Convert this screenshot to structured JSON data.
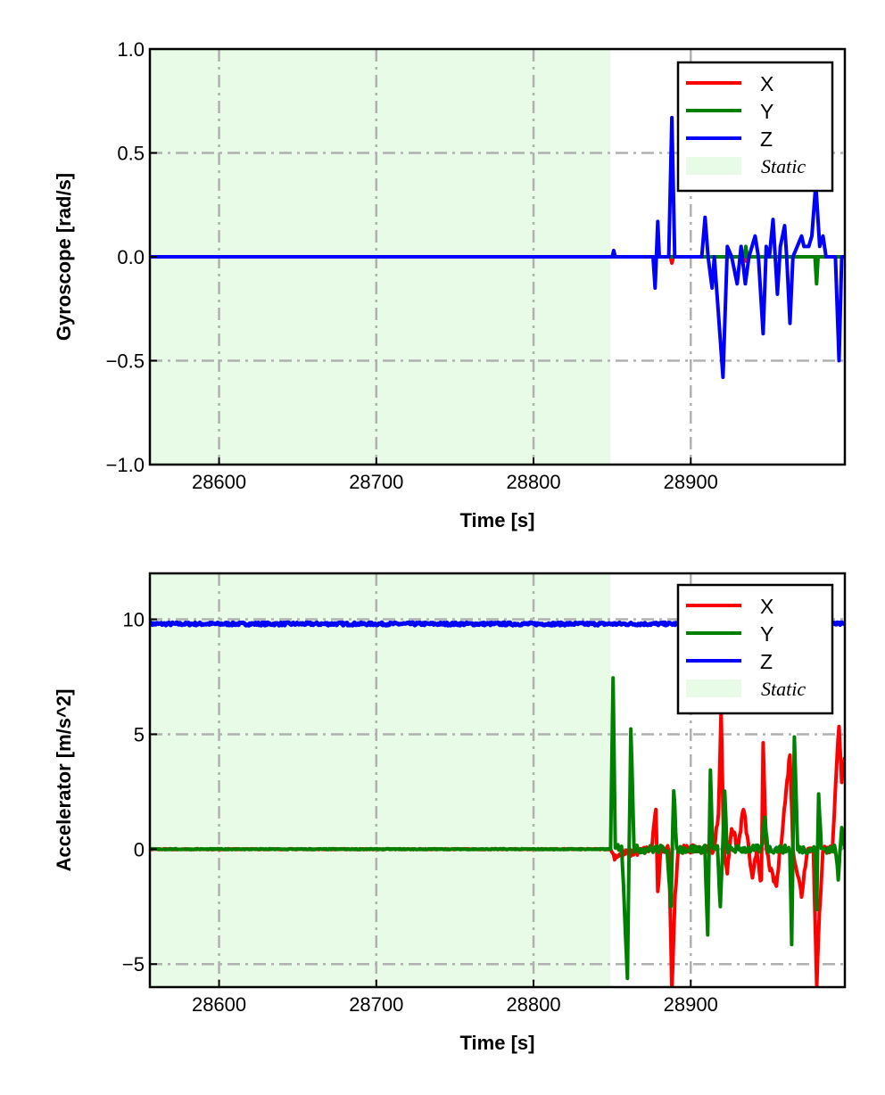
{
  "chart_data": [
    {
      "type": "line",
      "title": "",
      "xlabel": "Time [s]",
      "ylabel": "Gyroscope [rad/s]",
      "xlim": [
        28556,
        28998
      ],
      "ylim": [
        -1.0,
        1.0
      ],
      "xticks": [
        28600,
        28700,
        28800,
        28900
      ],
      "xtick_labels": [
        "28600",
        "28700",
        "28800",
        "28900"
      ],
      "yticks": [
        -1.0,
        -0.5,
        0.0,
        0.5,
        1.0
      ],
      "ytick_labels": [
        "−1.0",
        "−0.5",
        "0.0",
        "0.5",
        "1.0"
      ],
      "grid": true,
      "legend_position": "top-right",
      "static_span": {
        "label": "Static",
        "start": 28556,
        "end": 28849,
        "color": "#e8fbe6"
      },
      "series": [
        {
          "name": "X",
          "color": "#ff0000",
          "points": [
            [
              28556,
              0
            ],
            [
              28887,
              0
            ],
            [
              28888,
              -0.03
            ],
            [
              28889,
              0
            ],
            [
              28934,
              0
            ],
            [
              28935,
              -0.02
            ],
            [
              28936,
              0
            ],
            [
              28998,
              0
            ]
          ]
        },
        {
          "name": "Y",
          "color": "#008000",
          "points": [
            [
              28556,
              0
            ],
            [
              28934,
              0
            ],
            [
              28935,
              0.05
            ],
            [
              28936,
              0
            ],
            [
              28979,
              0
            ],
            [
              28980,
              -0.13
            ],
            [
              28981,
              0
            ],
            [
              28998,
              0
            ]
          ]
        },
        {
          "name": "Z",
          "color": "#0000ff",
          "points": [
            [
              28556,
              0
            ],
            [
              28850,
              0
            ],
            [
              28851,
              0.03
            ],
            [
              28852,
              0
            ],
            [
              28876,
              0
            ],
            [
              28877.3,
              -0.15
            ],
            [
              28879,
              0.17
            ],
            [
              28880,
              0
            ],
            [
              28886,
              0
            ],
            [
              28888,
              0.67
            ],
            [
              28889.8,
              0
            ],
            [
              28907,
              0
            ],
            [
              28909.1,
              0.19
            ],
            [
              28911,
              0
            ],
            [
              28913.6,
              -0.15
            ],
            [
              28915,
              0
            ],
            [
              28920.5,
              -0.58
            ],
            [
              28923.3,
              0.05
            ],
            [
              28926,
              0
            ],
            [
              28929.5,
              -0.13
            ],
            [
              28932,
              0.05
            ],
            [
              28934.7,
              -0.13
            ],
            [
              28937,
              0
            ],
            [
              28940.9,
              0.1
            ],
            [
              28943,
              0
            ],
            [
              28946,
              -0.37
            ],
            [
              28948,
              0.05
            ],
            [
              28950,
              0
            ],
            [
              28952.3,
              0.18
            ],
            [
              28955.1,
              -0.18
            ],
            [
              28957,
              0.05
            ],
            [
              28959.7,
              0.15
            ],
            [
              28961,
              0
            ],
            [
              28963.1,
              -0.32
            ],
            [
              28965,
              0
            ],
            [
              28970.5,
              0.1
            ],
            [
              28972,
              0.05
            ],
            [
              28975,
              0.05
            ],
            [
              28977,
              0.1
            ],
            [
              28979.5,
              0.35
            ],
            [
              28982,
              0.05
            ],
            [
              28984.1,
              0.1
            ],
            [
              28986,
              0
            ],
            [
              28992,
              0
            ],
            [
              28994.3,
              -0.5
            ],
            [
              28996,
              0
            ],
            [
              28998,
              0
            ]
          ]
        }
      ]
    },
    {
      "type": "line",
      "title": "",
      "xlabel": "Time [s]",
      "ylabel": "Accelerator [m/s^2]",
      "xlim": [
        28556,
        28998
      ],
      "ylim": [
        -6,
        12
      ],
      "xticks": [
        28600,
        28700,
        28800,
        28900
      ],
      "xtick_labels": [
        "28600",
        "28700",
        "28800",
        "28900"
      ],
      "yticks": [
        -5,
        0,
        5,
        10
      ],
      "ytick_labels": [
        "−5",
        "0",
        "5",
        "10"
      ],
      "grid": true,
      "legend_position": "top-right",
      "static_span": {
        "label": "Static",
        "start": 28556,
        "end": 28849,
        "color": "#e8fbe6"
      },
      "series": [
        {
          "name": "Z",
          "color": "#0000ff",
          "legend_order": 2,
          "points": [
            [
              28556,
              9.8
            ],
            [
              28998,
              9.8
            ]
          ]
        },
        {
          "name": "X",
          "color": "#ff0000",
          "legend_order": 0,
          "points": [
            [
              28556,
              0
            ],
            [
              28849,
              0
            ],
            [
              28851,
              -0.3
            ],
            [
              28875,
              0
            ],
            [
              28877.8,
              1.8
            ],
            [
              28879,
              -2
            ],
            [
              28881,
              0
            ],
            [
              28886,
              0
            ],
            [
              28888,
              -6
            ],
            [
              28890,
              -2
            ],
            [
              28892,
              0
            ],
            [
              28915,
              0
            ],
            [
              28917.6,
              1.6
            ],
            [
              28919.3,
              6
            ],
            [
              28921,
              0
            ],
            [
              28923.2,
              -1
            ],
            [
              28926,
              1
            ],
            [
              28930,
              0
            ],
            [
              28933.5,
              1.8
            ],
            [
              28936,
              0.5
            ],
            [
              28939.2,
              -1.4
            ],
            [
              28942,
              0
            ],
            [
              28944.9,
              -1.5
            ],
            [
              28946,
              4.5
            ],
            [
              28948,
              0
            ],
            [
              28951,
              -1
            ],
            [
              28954.5,
              -1.6
            ],
            [
              28957,
              0
            ],
            [
              28963.1,
              4.2
            ],
            [
              28965,
              0
            ],
            [
              28970.5,
              -2
            ],
            [
              28974,
              0
            ],
            [
              28978,
              0
            ],
            [
              28980.1,
              -6
            ],
            [
              28981.8,
              -2.9
            ],
            [
              28984,
              0
            ],
            [
              28990,
              0
            ],
            [
              28994.3,
              5.5
            ],
            [
              28996,
              3
            ],
            [
              28998,
              4
            ]
          ]
        },
        {
          "name": "Y",
          "color": "#008000",
          "legend_order": 1,
          "points": [
            [
              28556,
              0
            ],
            [
              28849,
              0
            ],
            [
              28850.6,
              7.4
            ],
            [
              28852,
              0
            ],
            [
              28856,
              0.2
            ],
            [
              28859.7,
              -5.5
            ],
            [
              28861.9,
              5.4
            ],
            [
              28864,
              0
            ],
            [
              28885,
              0
            ],
            [
              28887.5,
              -2.5
            ],
            [
              28889.2,
              2.7
            ],
            [
              28891,
              0
            ],
            [
              28909,
              0
            ],
            [
              28910.8,
              -3.7
            ],
            [
              28912.5,
              3.4
            ],
            [
              28914,
              0
            ],
            [
              28917,
              0
            ],
            [
              28918.8,
              -2.6
            ],
            [
              28921.6,
              2.5
            ],
            [
              28923,
              0
            ],
            [
              28945,
              0
            ],
            [
              28947.2,
              1.4
            ],
            [
              28949,
              0
            ],
            [
              28963,
              0
            ],
            [
              28964.2,
              -4.2
            ],
            [
              28965.9,
              4.8
            ],
            [
              28968,
              0
            ],
            [
              28979,
              0
            ],
            [
              28980.1,
              -2.6
            ],
            [
              28981.3,
              2.5
            ],
            [
              28983,
              0
            ],
            [
              28992,
              0
            ],
            [
              28993.8,
              -1.2
            ],
            [
              28996,
              1.1
            ],
            [
              28998,
              0
            ]
          ]
        }
      ]
    }
  ]
}
